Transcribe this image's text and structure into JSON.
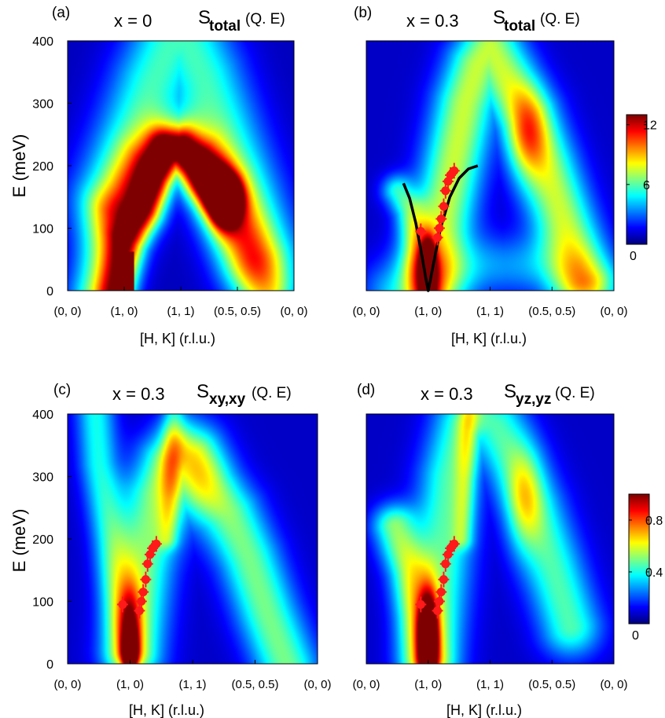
{
  "colors": {
    "colormap": [
      "#00007f",
      "#0000ff",
      "#0080ff",
      "#00ffff",
      "#80ff80",
      "#ffff00",
      "#ff8000",
      "#ff0000",
      "#7f0000"
    ],
    "marker": "#ff1a1a",
    "dispersion_line": "#000000"
  },
  "chart_data": [
    {
      "type": "heatmap",
      "panel_label": "(a)",
      "title_x": "x = 0",
      "title_s": "S",
      "title_sub": "total",
      "title_arg": "(Q. E)",
      "xlabel": "[H, K] (r.l.u.)",
      "ylabel": "E (meV)",
      "x_ticks": [
        "(0, 0)",
        "(1, 0)",
        "(1, 1)",
        "(0.5, 0.5)",
        "(0, 0)"
      ],
      "x_range": [
        0,
        4
      ],
      "y_ticks": [
        "0",
        "100",
        "200",
        "300",
        "400"
      ],
      "ylim": [
        0,
        400
      ],
      "colorbar": null,
      "features": [
        {
          "name": "base-arch",
          "points": [
            [
              0.55,
              0
            ],
            [
              0.85,
              120
            ],
            [
              1.1,
              150
            ],
            [
              1.4,
              200
            ],
            [
              1.7,
              225
            ],
            [
              2.0,
              230
            ],
            [
              2.3,
              210
            ],
            [
              2.7,
              160
            ],
            [
              3.0,
              100
            ],
            [
              3.25,
              50
            ],
            [
              3.5,
              0
            ]
          ],
          "width": 0.35,
          "intensity": 0.45
        },
        {
          "name": "upper-arch",
          "points": [
            [
              0.8,
              150
            ],
            [
              1.2,
              250
            ],
            [
              1.5,
              330
            ],
            [
              1.8,
              390
            ],
            [
              2.1,
              400
            ],
            [
              2.4,
              340
            ],
            [
              2.8,
              230
            ],
            [
              3.1,
              150
            ],
            [
              3.4,
              60
            ]
          ],
          "width": 0.5,
          "intensity": 0.38
        },
        {
          "name": "spin-wave",
          "points": [
            [
              0.85,
              0
            ],
            [
              0.95,
              40
            ],
            [
              1.05,
              80
            ],
            [
              1.2,
              105
            ],
            [
              1.35,
              130
            ],
            [
              1.55,
              185
            ],
            [
              1.75,
              225
            ],
            [
              2.0,
              225
            ],
            [
              2.2,
              205
            ],
            [
              2.4,
              180
            ],
            [
              2.6,
              160
            ],
            [
              2.75,
              150
            ]
          ],
          "width": 0.22,
          "intensity": 0.62
        }
      ],
      "spots": [
        {
          "x": 2.78,
          "y": 143,
          "sx": 0.17,
          "sy": 28,
          "amp": 0.9
        },
        {
          "x": 2.55,
          "y": 170,
          "sx": 0.22,
          "sy": 35,
          "amp": 0.25
        }
      ],
      "rects": [
        {
          "x0": 0.82,
          "x1": 1.18,
          "y0": 0,
          "y1": 62,
          "amp": 1.0
        }
      ],
      "markers": [],
      "dispersion": [],
      "base": 0.06
    },
    {
      "type": "heatmap",
      "panel_label": "(b)",
      "title_x": "x = 0.3",
      "title_s": "S",
      "title_sub": "total",
      "title_arg": "(Q. E)",
      "xlabel": "[H, K] (r.l.u.)",
      "ylabel": "",
      "x_ticks": [
        "(0, 0)",
        "(1, 0)",
        "(1, 1)",
        "(0.5, 0.5)",
        "(0, 0)"
      ],
      "x_range": [
        0,
        4
      ],
      "y_ticks": [],
      "ylim": [
        0,
        400
      ],
      "colorbar": {
        "ticks": [
          "0",
          "6",
          "12"
        ],
        "range": [
          0,
          13
        ]
      },
      "features": [
        {
          "name": "left-branch",
          "points": [
            [
              0.5,
              160
            ],
            [
              0.7,
              130
            ],
            [
              0.85,
              70
            ],
            [
              0.95,
              0
            ]
          ],
          "width": 0.18,
          "intensity": 0.32
        },
        {
          "name": "right-branch",
          "points": [
            [
              1.05,
              0
            ],
            [
              1.2,
              100
            ],
            [
              1.4,
              200
            ],
            [
              1.6,
              300
            ],
            [
              1.8,
              360
            ],
            [
              2.0,
              390
            ],
            [
              2.3,
              330
            ],
            [
              2.6,
              280
            ],
            [
              2.9,
              200
            ],
            [
              3.2,
              110
            ],
            [
              3.5,
              20
            ]
          ],
          "width": 0.35,
          "intensity": 0.5
        },
        {
          "name": "low-band",
          "points": [
            [
              0.4,
              0
            ],
            [
              0.7,
              20
            ],
            [
              1.3,
              30
            ],
            [
              2.0,
              40
            ],
            [
              2.8,
              40
            ],
            [
              3.3,
              20
            ],
            [
              3.6,
              0
            ]
          ],
          "width": 0.35,
          "intensity": 0.2
        }
      ],
      "spots": [
        {
          "x": 1.0,
          "y": 35,
          "sx": 0.08,
          "sy": 30,
          "amp": 0.85
        },
        {
          "x": 2.6,
          "y": 250,
          "sx": 0.22,
          "sy": 50,
          "amp": 0.3
        }
      ],
      "rects": [],
      "markers": [
        {
          "x": 0.88,
          "y": 95
        },
        {
          "x": 1.15,
          "y": 85
        },
        {
          "x": 1.18,
          "y": 100
        },
        {
          "x": 1.21,
          "y": 115
        },
        {
          "x": 1.25,
          "y": 135
        },
        {
          "x": 1.28,
          "y": 160
        },
        {
          "x": 1.32,
          "y": 175
        },
        {
          "x": 1.36,
          "y": 185
        },
        {
          "x": 1.42,
          "y": 192
        }
      ],
      "dispersion": [
        {
          "x": 0.6,
          "y": 172
        },
        {
          "x": 0.7,
          "y": 148
        },
        {
          "x": 0.8,
          "y": 108
        },
        {
          "x": 0.9,
          "y": 55
        },
        {
          "x": 0.97,
          "y": 15
        },
        {
          "x": 1.0,
          "y": 0
        },
        {
          "x": 1.08,
          "y": 40
        },
        {
          "x": 1.2,
          "y": 100
        },
        {
          "x": 1.35,
          "y": 150
        },
        {
          "x": 1.5,
          "y": 180
        },
        {
          "x": 1.65,
          "y": 195
        },
        {
          "x": 1.8,
          "y": 200
        }
      ],
      "base": 0.07
    },
    {
      "type": "heatmap",
      "panel_label": "(c)",
      "title_x": "x = 0.3",
      "title_s": "S",
      "title_sub": "xy,xy",
      "title_arg": "(Q. E)",
      "xlabel": "[H, K] (r.l.u.)",
      "ylabel": "E (meV)",
      "x_ticks": [
        "(0, 0)",
        "(1, 0)",
        "(1, 1)",
        "(0.5, 0.5)",
        "(0, 0)"
      ],
      "x_range": [
        0,
        4
      ],
      "y_ticks": [
        "0",
        "100",
        "200",
        "300",
        "400"
      ],
      "ylim": [
        0,
        400
      ],
      "colorbar": null,
      "features": [
        {
          "name": "left-branch",
          "points": [
            [
              0.45,
              400
            ],
            [
              0.5,
              320
            ],
            [
              0.6,
              260
            ],
            [
              0.7,
              200
            ],
            [
              0.85,
              100
            ],
            [
              0.95,
              20
            ]
          ],
          "width": 0.22,
          "intensity": 0.32
        },
        {
          "name": "right-branch",
          "points": [
            [
              1.05,
              20
            ],
            [
              1.2,
              150
            ],
            [
              1.4,
              270
            ],
            [
              1.6,
              320
            ],
            [
              1.8,
              340
            ],
            [
              2.0,
              330
            ],
            [
              2.3,
              280
            ],
            [
              2.6,
              240
            ],
            [
              2.9,
              170
            ],
            [
              3.2,
              80
            ],
            [
              3.5,
              0
            ]
          ],
          "width": 0.35,
          "intensity": 0.42
        },
        {
          "name": "vertical-band",
          "points": [
            [
              1.6,
              200
            ],
            [
              1.65,
              300
            ],
            [
              1.7,
              400
            ]
          ],
          "width": 0.12,
          "intensity": 0.2
        }
      ],
      "spots": [
        {
          "x": 1.0,
          "y": 20,
          "sx": 0.07,
          "sy": 22,
          "amp": 1.0
        },
        {
          "x": 1.0,
          "y": 60,
          "sx": 0.12,
          "sy": 45,
          "amp": 0.35
        },
        {
          "x": 2.0,
          "y": 300,
          "sx": 0.35,
          "sy": 60,
          "amp": 0.2
        }
      ],
      "rects": [],
      "markers": [
        {
          "x": 0.88,
          "y": 95
        },
        {
          "x": 1.15,
          "y": 85
        },
        {
          "x": 1.18,
          "y": 100
        },
        {
          "x": 1.21,
          "y": 115
        },
        {
          "x": 1.25,
          "y": 135
        },
        {
          "x": 1.28,
          "y": 160
        },
        {
          "x": 1.32,
          "y": 175
        },
        {
          "x": 1.36,
          "y": 185
        },
        {
          "x": 1.42,
          "y": 192
        }
      ],
      "dispersion": [],
      "base": 0.07
    },
    {
      "type": "heatmap",
      "panel_label": "(d)",
      "title_x": "x = 0.3",
      "title_s": "S",
      "title_sub": "yz,yz",
      "title_arg": "(Q. E)",
      "xlabel": "[H, K] (r.l.u.)",
      "ylabel": "",
      "x_ticks": [
        "(0, 0)",
        "(1, 0)",
        "(1, 1)",
        "(0.5, 0.5)",
        "(0, 0)"
      ],
      "x_range": [
        0,
        4
      ],
      "y_ticks": [],
      "ylim": [
        0,
        400
      ],
      "colorbar": {
        "ticks": [
          "0",
          "0.4",
          "0.8"
        ],
        "range": [
          0,
          1
        ]
      },
      "features": [
        {
          "name": "left-branch",
          "points": [
            [
              0.45,
              220
            ],
            [
              0.55,
              190
            ],
            [
              0.7,
              150
            ],
            [
              0.85,
              80
            ],
            [
              0.95,
              10
            ]
          ],
          "width": 0.25,
          "intensity": 0.42
        },
        {
          "name": "right-branch",
          "points": [
            [
              1.05,
              10
            ],
            [
              1.2,
              150
            ],
            [
              1.35,
              300
            ],
            [
              1.55,
              380
            ],
            [
              1.8,
              400
            ],
            [
              2.1,
              380
            ],
            [
              2.4,
              320
            ],
            [
              2.7,
              250
            ],
            [
              3.0,
              160
            ],
            [
              3.3,
              60
            ]
          ],
          "width": 0.35,
          "intensity": 0.38
        },
        {
          "name": "vertical-band",
          "points": [
            [
              1.55,
              200
            ],
            [
              1.6,
              300
            ],
            [
              1.65,
              400
            ]
          ],
          "width": 0.12,
          "intensity": 0.22
        }
      ],
      "spots": [
        {
          "x": 1.0,
          "y": 40,
          "sx": 0.1,
          "sy": 45,
          "amp": 1.0
        },
        {
          "x": 2.55,
          "y": 260,
          "sx": 0.2,
          "sy": 55,
          "amp": 0.25
        }
      ],
      "rects": [],
      "markers": [
        {
          "x": 0.88,
          "y": 95
        },
        {
          "x": 1.15,
          "y": 85
        },
        {
          "x": 1.18,
          "y": 100
        },
        {
          "x": 1.21,
          "y": 115
        },
        {
          "x": 1.25,
          "y": 135
        },
        {
          "x": 1.28,
          "y": 160
        },
        {
          "x": 1.32,
          "y": 175
        },
        {
          "x": 1.36,
          "y": 185
        },
        {
          "x": 1.42,
          "y": 192
        }
      ],
      "dispersion": [],
      "base": 0.07
    }
  ]
}
